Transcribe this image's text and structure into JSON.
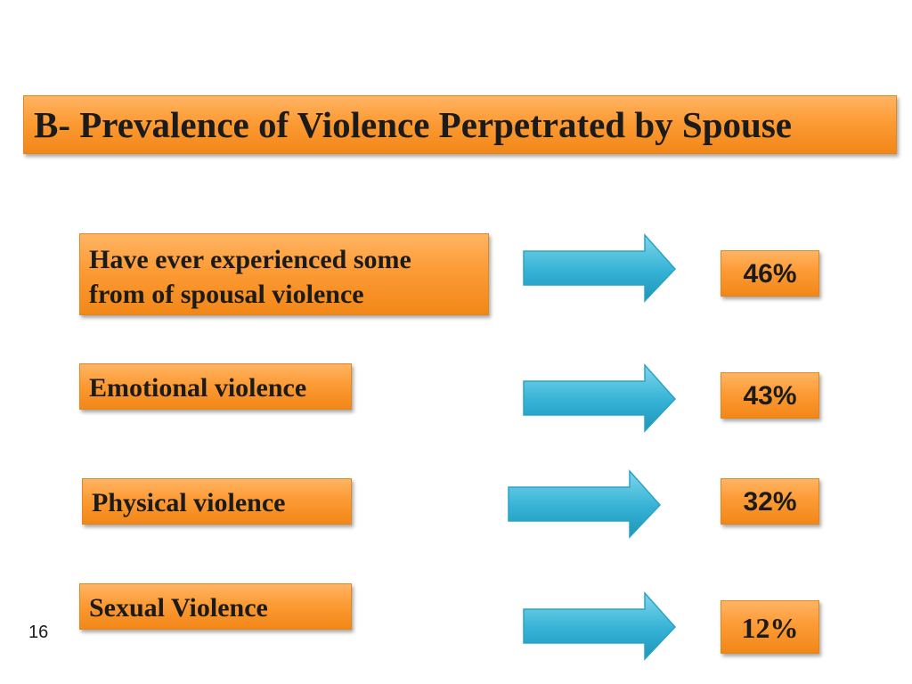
{
  "title": "B- Prevalence of Violence Perpetrated by Spouse",
  "rows": [
    {
      "label_lines": [
        "Have ever experienced some",
        "from of spousal violence"
      ],
      "value": "46%"
    },
    {
      "label_lines": [
        "Emotional violence"
      ],
      "value": "43%"
    },
    {
      "label_lines": [
        "Physical violence"
      ],
      "value": "32%"
    },
    {
      "label_lines": [
        "Sexual Violence"
      ],
      "value": "12%"
    }
  ],
  "slide_number": "16",
  "colors": {
    "box_orange": "#fc9b35",
    "arrow_blue": "#33b0d3",
    "text": "#1b1b1b"
  },
  "icons": [
    "right-arrow-icon"
  ]
}
